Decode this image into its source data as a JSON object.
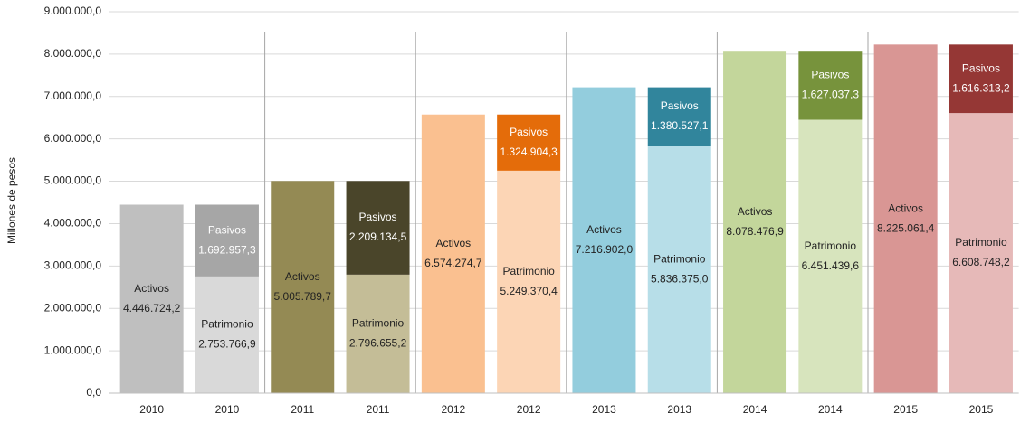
{
  "chart_data": {
    "type": "bar",
    "y_label": "Millones de pesos",
    "categories": [
      "2010",
      "2010",
      "2011",
      "2011",
      "2012",
      "2012",
      "2013",
      "2013",
      "2014",
      "2014",
      "2015",
      "2015"
    ],
    "series": [
      {
        "name": "Activos",
        "values": [
          4446724.2,
          null,
          5005789.7,
          null,
          6574274.7,
          null,
          7216902.0,
          null,
          8078476.9,
          null,
          8225061.4,
          null
        ],
        "value_labels": [
          "4.446.724,2",
          null,
          "5.005.789,7",
          null,
          "6.574.274,7",
          null,
          "7.216.902,0",
          null,
          "8.078.476,9",
          null,
          "8.225.061,4",
          null
        ],
        "colors": [
          "#bfbfbf",
          null,
          "#948a54",
          null,
          "#fac090",
          null,
          "#93cddd",
          null,
          "#c3d69b",
          null,
          "#d99694",
          null
        ],
        "label_color": "#222222"
      },
      {
        "name": "Patrimonio",
        "values": [
          null,
          2753766.9,
          null,
          2796655.2,
          null,
          5249370.4,
          null,
          5836375.0,
          null,
          6451439.6,
          null,
          6608748.2
        ],
        "value_labels": [
          null,
          "2.753.766,9",
          null,
          "2.796.655,2",
          null,
          "5.249.370,4",
          null,
          "5.836.375,0",
          null,
          "6.451.439,6",
          null,
          "6.608.748,2"
        ],
        "colors": [
          null,
          "#d9d9d9",
          null,
          "#c4bd97",
          null,
          "#fcd5b5",
          null,
          "#b7dee8",
          null,
          "#d7e4bd",
          null,
          "#e6b9b8"
        ],
        "label_color": "#222222"
      },
      {
        "name": "Pasivos",
        "values": [
          null,
          1692957.3,
          null,
          2209134.5,
          null,
          1324904.3,
          null,
          1380527.1,
          null,
          1627037.3,
          null,
          1616313.2
        ],
        "value_labels": [
          null,
          "1.692.957,3",
          null,
          "2.209.134,5",
          null,
          "1.324.904,3",
          null,
          "1.380.527,1",
          null,
          "1.627.037,3",
          null,
          "1.616.313,2"
        ],
        "colors": [
          null,
          "#a6a6a6",
          null,
          "#4a452a",
          null,
          "#e46c0a",
          null,
          "#31859c",
          null,
          "#77933c",
          null,
          "#953735"
        ],
        "label_color": "#ffffff"
      }
    ],
    "stacked": true,
    "ylim": [
      0,
      9000000
    ],
    "yticks": [
      {
        "value": 0,
        "label": "0,0"
      },
      {
        "value": 1000000,
        "label": "1.000.000,0"
      },
      {
        "value": 2000000,
        "label": "2.000.000,0"
      },
      {
        "value": 3000000,
        "label": "3.000.000,0"
      },
      {
        "value": 4000000,
        "label": "4.000.000,0"
      },
      {
        "value": 5000000,
        "label": "5.000.000,0"
      },
      {
        "value": 6000000,
        "label": "6.000.000,0"
      },
      {
        "value": 7000000,
        "label": "7.000.000,0"
      },
      {
        "value": 8000000,
        "label": "8.000.000,0"
      },
      {
        "value": 9000000,
        "label": "9.000.000,0"
      }
    ],
    "grid": true
  }
}
